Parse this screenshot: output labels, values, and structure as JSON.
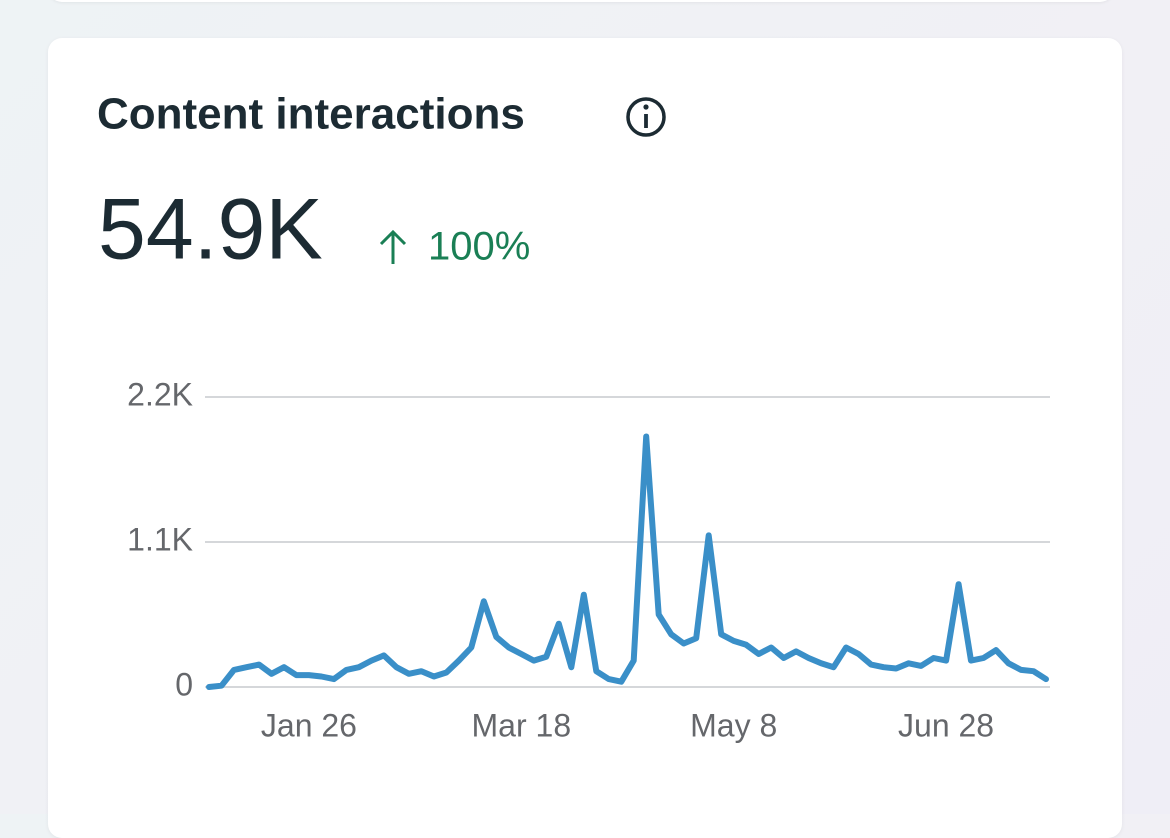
{
  "chart_data": {
    "type": "line",
    "title": "Content interactions",
    "total": "54.9K",
    "change": "100%",
    "color": "#3a8fc8",
    "categories": [
      null,
      null,
      null,
      null,
      null,
      null,
      null,
      null,
      "Jan 26",
      null,
      null,
      null,
      null,
      null,
      null,
      null,
      null,
      null,
      null,
      null,
      null,
      null,
      null,
      null,
      null,
      "Mar 18",
      null,
      null,
      null,
      null,
      null,
      null,
      null,
      null,
      null,
      null,
      null,
      null,
      null,
      null,
      null,
      null,
      "May 8",
      null,
      null,
      null,
      null,
      null,
      null,
      null,
      null,
      null,
      null,
      null,
      null,
      null,
      null,
      null,
      null,
      "Jun 28",
      null,
      null,
      null,
      null,
      null,
      null,
      null,
      null
    ],
    "values": [
      0,
      10,
      130,
      150,
      170,
      100,
      150,
      90,
      90,
      80,
      60,
      130,
      150,
      200,
      240,
      150,
      100,
      120,
      80,
      110,
      200,
      300,
      650,
      380,
      300,
      250,
      200,
      230,
      480,
      150,
      700,
      120,
      60,
      40,
      200,
      1900,
      550,
      400,
      330,
      370,
      1150,
      400,
      350,
      320,
      250,
      300,
      220,
      270,
      220,
      180,
      150,
      300,
      250,
      170,
      150,
      140,
      180,
      160,
      220,
      200,
      780,
      200,
      220,
      280,
      180,
      130,
      120,
      60
    ],
    "ylim": [
      0,
      2200
    ],
    "yticks": [
      0,
      {
        "value": 1100,
        "label": "1.1K"
      },
      {
        "value": 2200,
        "label": "2.2K"
      }
    ],
    "grid": true
  }
}
